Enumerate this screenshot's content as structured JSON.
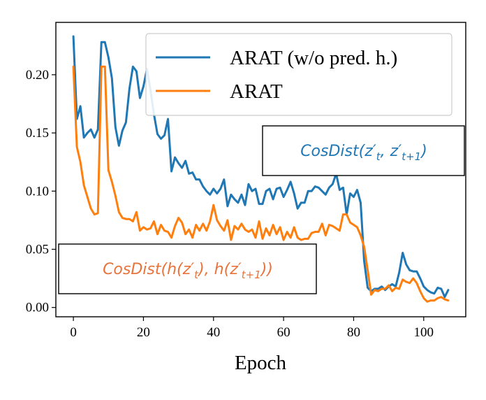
{
  "chart_data": {
    "type": "line",
    "xlabel": "Epoch",
    "ylabel": "",
    "xlim": [
      -5,
      112
    ],
    "ylim": [
      -0.008,
      0.245
    ],
    "xticks": [
      0,
      20,
      40,
      60,
      80,
      100
    ],
    "yticks": [
      0.0,
      0.05,
      0.1,
      0.15,
      0.2
    ],
    "xtick_labels": [
      "0",
      "20",
      "40",
      "60",
      "80",
      "100"
    ],
    "ytick_labels": [
      "0.00",
      "0.05",
      "0.10",
      "0.15",
      "0.20"
    ],
    "grid": false,
    "legend": {
      "placement": "top-right"
    },
    "series": [
      {
        "name": "ARAT (w/o pred. h.)",
        "color": "#1f77b4",
        "x": [
          0,
          1,
          2,
          3,
          4,
          5,
          6,
          7,
          8,
          9,
          10,
          11,
          12,
          13,
          14,
          15,
          16,
          17,
          18,
          19,
          20,
          21,
          22,
          23,
          24,
          25,
          26,
          27,
          28,
          29,
          30,
          31,
          32,
          33,
          34,
          35,
          36,
          37,
          38,
          39,
          40,
          41,
          42,
          43,
          44,
          45,
          46,
          47,
          48,
          49,
          50,
          51,
          52,
          53,
          54,
          55,
          56,
          57,
          58,
          59,
          60,
          61,
          62,
          63,
          64,
          65,
          66,
          67,
          68,
          69,
          70,
          71,
          72,
          73,
          74,
          75,
          76,
          77,
          78,
          79,
          80,
          81,
          82,
          83,
          84,
          85,
          86,
          87,
          88,
          89,
          90,
          91,
          92,
          93,
          94,
          95,
          96,
          97,
          98,
          99,
          100,
          101,
          102,
          103,
          104,
          105,
          106,
          107
        ],
        "values": [
          0.233,
          0.162,
          0.173,
          0.146,
          0.15,
          0.153,
          0.146,
          0.153,
          0.228,
          0.228,
          0.215,
          0.197,
          0.155,
          0.139,
          0.152,
          0.159,
          0.188,
          0.207,
          0.203,
          0.18,
          0.19,
          0.205,
          0.187,
          0.166,
          0.149,
          0.145,
          0.148,
          0.162,
          0.117,
          0.129,
          0.124,
          0.12,
          0.126,
          0.115,
          0.116,
          0.11,
          0.11,
          0.104,
          0.1,
          0.097,
          0.102,
          0.098,
          0.102,
          0.11,
          0.087,
          0.097,
          0.093,
          0.09,
          0.097,
          0.088,
          0.106,
          0.1,
          0.102,
          0.089,
          0.089,
          0.1,
          0.102,
          0.093,
          0.102,
          0.103,
          0.095,
          0.101,
          0.108,
          0.098,
          0.085,
          0.09,
          0.09,
          0.1,
          0.1,
          0.104,
          0.103,
          0.1,
          0.097,
          0.103,
          0.106,
          0.115,
          0.101,
          0.103,
          0.08,
          0.098,
          0.095,
          0.101,
          0.09,
          0.04,
          0.017,
          0.014,
          0.016,
          0.016,
          0.018,
          0.015,
          0.018,
          0.02,
          0.018,
          0.03,
          0.047,
          0.037,
          0.032,
          0.031,
          0.031,
          0.025,
          0.018,
          0.015,
          0.013,
          0.012,
          0.017,
          0.016,
          0.009,
          0.015
        ]
      },
      {
        "name": "ARAT",
        "color": "#ff7f0e",
        "x": [
          0,
          1,
          2,
          3,
          4,
          5,
          6,
          7,
          8,
          9,
          10,
          11,
          12,
          13,
          14,
          15,
          16,
          17,
          18,
          19,
          20,
          21,
          22,
          23,
          24,
          25,
          26,
          27,
          28,
          29,
          30,
          31,
          32,
          33,
          34,
          35,
          36,
          37,
          38,
          39,
          40,
          41,
          42,
          43,
          44,
          45,
          46,
          47,
          48,
          49,
          50,
          51,
          52,
          53,
          54,
          55,
          56,
          57,
          58,
          59,
          60,
          61,
          62,
          63,
          64,
          65,
          66,
          67,
          68,
          69,
          70,
          71,
          72,
          73,
          74,
          75,
          76,
          77,
          78,
          79,
          80,
          81,
          82,
          83,
          84,
          85,
          86,
          87,
          88,
          89,
          90,
          91,
          92,
          93,
          94,
          95,
          96,
          97,
          98,
          99,
          100,
          101,
          102,
          103,
          104,
          105,
          106,
          107
        ],
        "values": [
          0.207,
          0.138,
          0.125,
          0.105,
          0.095,
          0.085,
          0.08,
          0.081,
          0.207,
          0.207,
          0.118,
          0.108,
          0.096,
          0.082,
          0.077,
          0.076,
          0.076,
          0.074,
          0.082,
          0.066,
          0.069,
          0.067,
          0.068,
          0.074,
          0.063,
          0.071,
          0.066,
          0.065,
          0.06,
          0.07,
          0.077,
          0.073,
          0.063,
          0.067,
          0.06,
          0.071,
          0.066,
          0.072,
          0.066,
          0.074,
          0.088,
          0.075,
          0.07,
          0.066,
          0.075,
          0.058,
          0.07,
          0.067,
          0.072,
          0.067,
          0.065,
          0.067,
          0.06,
          0.074,
          0.059,
          0.068,
          0.062,
          0.071,
          0.063,
          0.069,
          0.058,
          0.065,
          0.06,
          0.069,
          0.06,
          0.058,
          0.059,
          0.059,
          0.064,
          0.065,
          0.065,
          0.072,
          0.062,
          0.071,
          0.07,
          0.068,
          0.066,
          0.08,
          0.08,
          0.073,
          0.071,
          0.069,
          0.062,
          0.052,
          0.032,
          0.011,
          0.015,
          0.014,
          0.016,
          0.016,
          0.019,
          0.014,
          0.017,
          0.016,
          0.024,
          0.022,
          0.021,
          0.025,
          0.021,
          0.014,
          0.008,
          0.005,
          0.006,
          0.006,
          0.008,
          0.009,
          0.007,
          0.006
        ]
      }
    ],
    "annotations": [
      {
        "text": "CosDist(z′t, z′t+1)",
        "color": "#1f77b4",
        "placement": "right-middle"
      },
      {
        "text": "CosDist(h(z′t), h(z′t+1))",
        "color": "#e8733a",
        "placement": "left-lower"
      }
    ]
  },
  "annotations_display": {
    "blue": {
      "main": "CosDist(",
      "z1": "z",
      "p1": "′",
      "s1": "t",
      "sep": ", ",
      "z2": "z",
      "p2": "′",
      "s2": "t+1",
      "close": ")"
    },
    "orange": {
      "main": "CosDist(",
      "h1": "h(",
      "z1": "z",
      "p1": "′",
      "s1": "t",
      "c1": ")",
      "sep": ", ",
      "h2": "h(",
      "z2": "z",
      "p2": "′",
      "s2": "t+1",
      "c2": ")",
      "close": ")"
    }
  }
}
